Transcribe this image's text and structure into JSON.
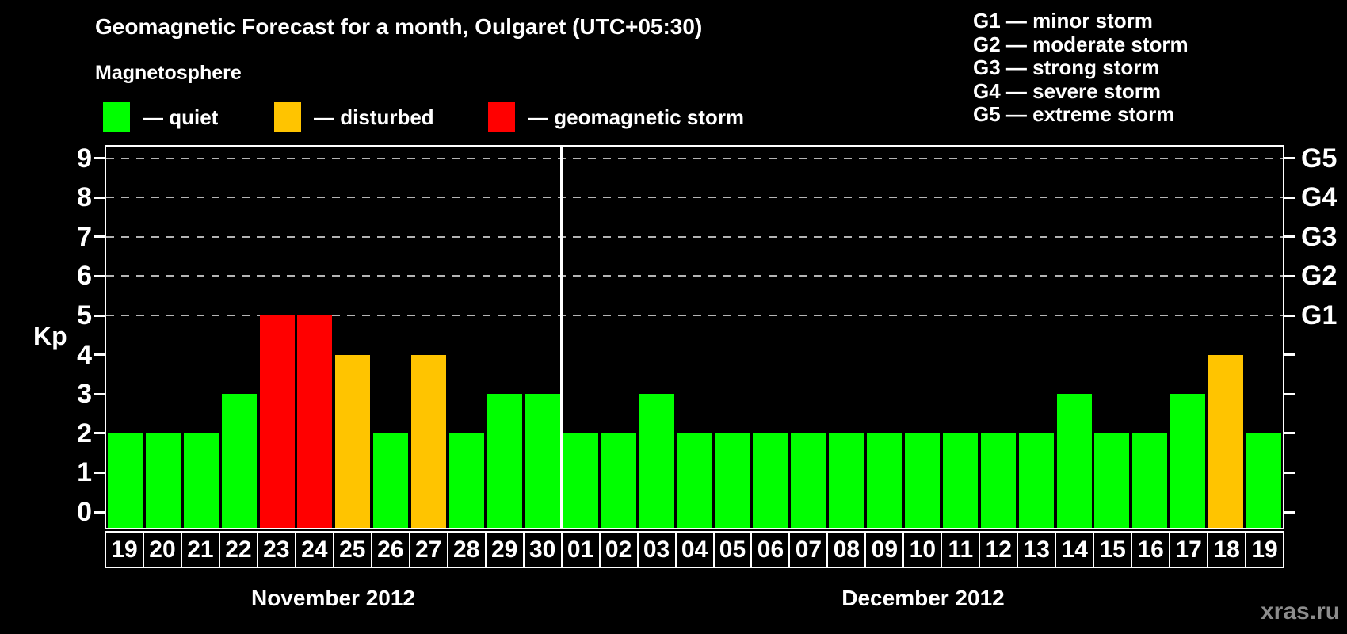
{
  "title": "Geomagnetic Forecast for a month, Oulgaret (UTC+05:30)",
  "subtitle": "Magnetosphere",
  "legend": {
    "items": [
      {
        "key": "quiet",
        "label": "— quiet",
        "color": "#00ff00"
      },
      {
        "key": "disturbed",
        "label": "— disturbed",
        "color": "#ffc400"
      },
      {
        "key": "storm",
        "label": "— geomagnetic storm",
        "color": "#ff0000"
      }
    ]
  },
  "g_scale_legend": [
    "G1 — minor storm",
    "G2 — moderate storm",
    "G3 — strong storm",
    "G4 — severe storm",
    "G5 — extreme storm"
  ],
  "watermark": "xras.ru",
  "chart_data": {
    "type": "bar",
    "title": "Geomagnetic Forecast for a month, Oulgaret (UTC+05:30)",
    "ylabel": "Kp",
    "ylim": [
      0,
      9.4
    ],
    "yticks": [
      0,
      1,
      2,
      3,
      4,
      5,
      6,
      7,
      8,
      9
    ],
    "gridlines": [
      5,
      6,
      7,
      8,
      9
    ],
    "grid": "dashed-horizontal",
    "legend_position": "top-left",
    "right_axis": [
      {
        "label": "G1",
        "kp": 5
      },
      {
        "label": "G2",
        "kp": 6
      },
      {
        "label": "G3",
        "kp": 7
      },
      {
        "label": "G4",
        "kp": 8
      },
      {
        "label": "G5",
        "kp": 9
      }
    ],
    "status_colors": {
      "quiet": "#00ff00",
      "disturbed": "#ffc400",
      "storm": "#ff0000"
    },
    "months": [
      {
        "label": "November 2012",
        "days": [
          {
            "day": "19",
            "kp": 2,
            "status": "quiet"
          },
          {
            "day": "20",
            "kp": 2,
            "status": "quiet"
          },
          {
            "day": "21",
            "kp": 2,
            "status": "quiet"
          },
          {
            "day": "22",
            "kp": 3,
            "status": "quiet"
          },
          {
            "day": "23",
            "kp": 5,
            "status": "storm"
          },
          {
            "day": "24",
            "kp": 5,
            "status": "storm"
          },
          {
            "day": "25",
            "kp": 4,
            "status": "disturbed"
          },
          {
            "day": "26",
            "kp": 2,
            "status": "quiet"
          },
          {
            "day": "27",
            "kp": 4,
            "status": "disturbed"
          },
          {
            "day": "28",
            "kp": 2,
            "status": "quiet"
          },
          {
            "day": "29",
            "kp": 3,
            "status": "quiet"
          },
          {
            "day": "30",
            "kp": 3,
            "status": "quiet"
          }
        ]
      },
      {
        "label": "December 2012",
        "days": [
          {
            "day": "01",
            "kp": 2,
            "status": "quiet"
          },
          {
            "day": "02",
            "kp": 2,
            "status": "quiet"
          },
          {
            "day": "03",
            "kp": 3,
            "status": "quiet"
          },
          {
            "day": "04",
            "kp": 2,
            "status": "quiet"
          },
          {
            "day": "05",
            "kp": 2,
            "status": "quiet"
          },
          {
            "day": "06",
            "kp": 2,
            "status": "quiet"
          },
          {
            "day": "07",
            "kp": 2,
            "status": "quiet"
          },
          {
            "day": "08",
            "kp": 2,
            "status": "quiet"
          },
          {
            "day": "09",
            "kp": 2,
            "status": "quiet"
          },
          {
            "day": "10",
            "kp": 2,
            "status": "quiet"
          },
          {
            "day": "11",
            "kp": 2,
            "status": "quiet"
          },
          {
            "day": "12",
            "kp": 2,
            "status": "quiet"
          },
          {
            "day": "13",
            "kp": 2,
            "status": "quiet"
          },
          {
            "day": "14",
            "kp": 3,
            "status": "quiet"
          },
          {
            "day": "15",
            "kp": 2,
            "status": "quiet"
          },
          {
            "day": "16",
            "kp": 2,
            "status": "quiet"
          },
          {
            "day": "17",
            "kp": 3,
            "status": "quiet"
          },
          {
            "day": "18",
            "kp": 4,
            "status": "disturbed"
          },
          {
            "day": "19",
            "kp": 2,
            "status": "quiet"
          }
        ]
      }
    ]
  }
}
